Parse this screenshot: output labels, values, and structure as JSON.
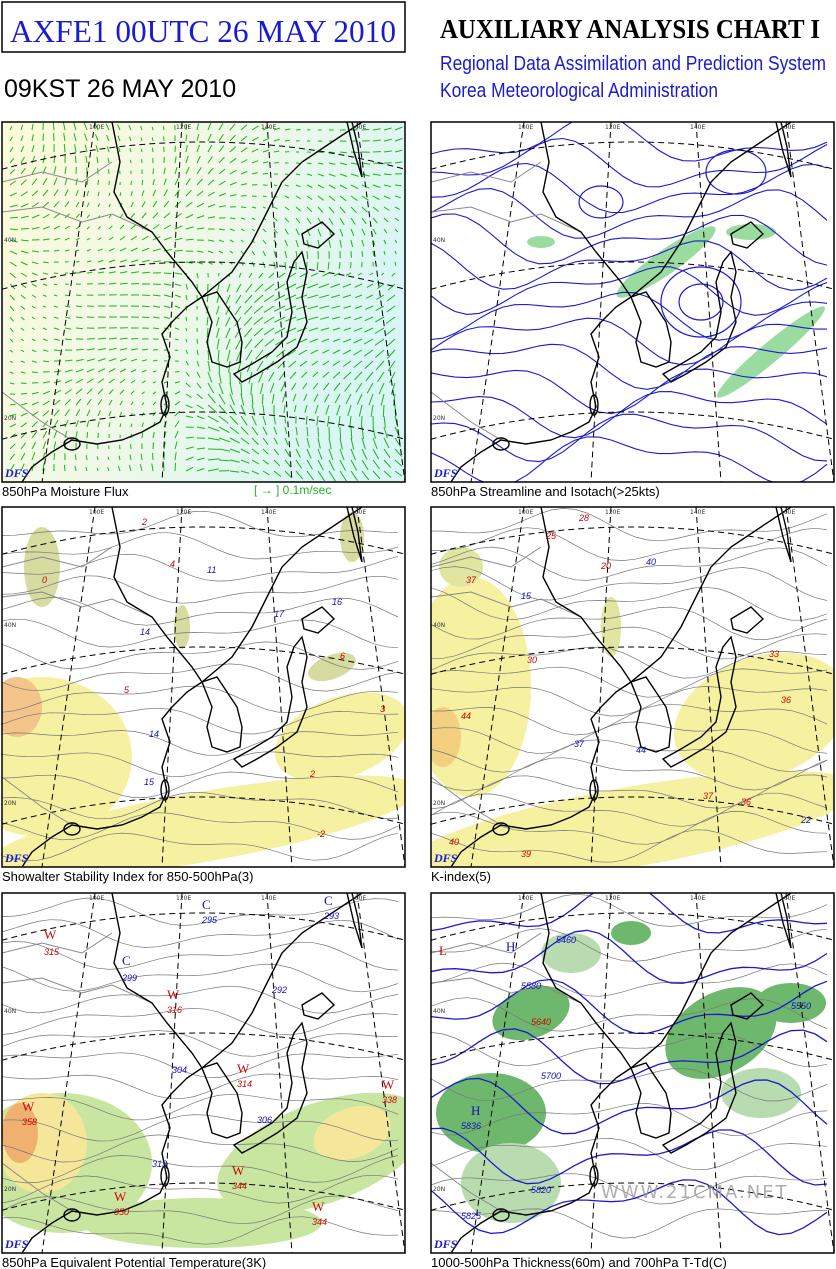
{
  "header": {
    "code_title": "AXFE1  00UTC 26 MAY 2010",
    "local_time": "09KST 26 MAY 2010",
    "chart_title": "AUXILIARY ANALYSIS CHART I",
    "system": "Regional Data Assimilation and Prediction System",
    "agency": "Korea Meteorological Administration"
  },
  "panels": [
    {
      "caption": "850hPa Moisture Flux",
      "legend": "[   →   ] 0.1m/sec",
      "logo": "DFS",
      "lon_labels": [
        "100E",
        "120E",
        "140E",
        "160E"
      ],
      "lat_labels": [
        "40N",
        "20N"
      ],
      "labels": []
    },
    {
      "caption": "850hPa Streamline and Isotach(>25kts)",
      "logo": "DFS",
      "lon_labels": [
        "100E",
        "120E",
        "140E",
        "160E"
      ],
      "lat_labels": [
        "40N",
        "20N"
      ],
      "labels": []
    },
    {
      "caption": "Showalter Stability Index for 850-500hPa(3)",
      "logo": "DFS",
      "lon_labels": [
        "100E",
        "120E",
        "140E",
        "160E"
      ],
      "lat_labels": [
        "40N",
        "20N"
      ],
      "labels": [
        {
          "text": "2",
          "color": "#d00000"
        },
        {
          "text": "4",
          "color": "#d00000"
        },
        {
          "text": "11",
          "color": "#1010c0"
        },
        {
          "text": "14",
          "color": "#1010c0"
        },
        {
          "text": "17",
          "color": "#1010c0"
        },
        {
          "text": "16",
          "color": "#1010c0"
        },
        {
          "text": "6",
          "color": "#d00000"
        },
        {
          "text": "5",
          "color": "#d00000"
        },
        {
          "text": "14",
          "color": "#1010c0"
        },
        {
          "text": "15",
          "color": "#1010c0"
        },
        {
          "text": "2",
          "color": "#d00000"
        },
        {
          "text": "-2",
          "color": "#d00000"
        },
        {
          "text": "0",
          "color": "#d00000"
        },
        {
          "text": "3",
          "color": "#d00000"
        }
      ]
    },
    {
      "caption": "K-index(5)",
      "logo": "DFS",
      "lon_labels": [
        "100E",
        "120E",
        "140E",
        "160E"
      ],
      "lat_labels": [
        "40N",
        "20N"
      ],
      "labels": [
        {
          "text": "28",
          "color": "#d00000"
        },
        {
          "text": "25",
          "color": "#d00000"
        },
        {
          "text": "20",
          "color": "#d00000"
        },
        {
          "text": "40",
          "color": "#1010c0"
        },
        {
          "text": "37",
          "color": "#d00000"
        },
        {
          "text": "15",
          "color": "#1010c0"
        },
        {
          "text": "30",
          "color": "#d00000"
        },
        {
          "text": "33",
          "color": "#d00000"
        },
        {
          "text": "36",
          "color": "#d00000"
        },
        {
          "text": "44",
          "color": "#d00000"
        },
        {
          "text": "44",
          "color": "#1010c0"
        },
        {
          "text": "-37",
          "color": "#1010c0"
        },
        {
          "text": "37",
          "color": "#d00000"
        },
        {
          "text": "36",
          "color": "#d00000"
        },
        {
          "text": "22",
          "color": "#1010c0"
        },
        {
          "text": "40",
          "color": "#d00000"
        },
        {
          "text": "39",
          "color": "#d00000"
        }
      ]
    },
    {
      "caption": "850hPa Equivalent Potential Temperature(3K)",
      "logo": "DFS",
      "lon_labels": [
        "100E",
        "120E",
        "140E",
        "160E"
      ],
      "lat_labels": [
        "40N",
        "20N"
      ],
      "labels": [
        {
          "text": "W",
          "color": "#d00000"
        },
        {
          "text": "315",
          "color": "#d00000"
        },
        {
          "text": "C",
          "color": "#1010c0"
        },
        {
          "text": "299",
          "color": "#1010c0"
        },
        {
          "text": "W",
          "color": "#d00000"
        },
        {
          "text": "316",
          "color": "#d00000"
        },
        {
          "text": "C",
          "color": "#1010c0"
        },
        {
          "text": "295",
          "color": "#1010c0"
        },
        {
          "text": "C",
          "color": "#1010c0"
        },
        {
          "text": "293",
          "color": "#1010c0"
        },
        {
          "text": "292",
          "color": "#1010c0"
        },
        {
          "text": "304",
          "color": "#1010c0"
        },
        {
          "text": "W",
          "color": "#d00000"
        },
        {
          "text": "314",
          "color": "#d00000"
        },
        {
          "text": "306",
          "color": "#1010c0"
        },
        {
          "text": "W",
          "color": "#d00000"
        },
        {
          "text": "338",
          "color": "#d00000"
        },
        {
          "text": "W",
          "color": "#d00000"
        },
        {
          "text": "358",
          "color": "#d00000"
        },
        {
          "text": "313",
          "color": "#1010c0"
        },
        {
          "text": "W",
          "color": "#d00000"
        },
        {
          "text": "344",
          "color": "#d00000"
        },
        {
          "text": "W",
          "color": "#d00000"
        },
        {
          "text": "350",
          "color": "#d00000"
        },
        {
          "text": "W",
          "color": "#d00000"
        },
        {
          "text": "344",
          "color": "#d00000"
        }
      ]
    },
    {
      "caption": "1000-500hPa Thickness(60m) and 700hPa T-Td(C)",
      "logo": "DFS",
      "lon_labels": [
        "100E",
        "120E",
        "140E",
        "160E"
      ],
      "lat_labels": [
        "40N",
        "20N"
      ],
      "watermark": "WWW.21CMA.NET",
      "labels": [
        {
          "text": "5460",
          "color": "#1010c0"
        },
        {
          "text": "H",
          "color": "#1010c0"
        },
        {
          "text": "5580",
          "color": "#1010c0"
        },
        {
          "text": "5640",
          "color": "#d00000"
        },
        {
          "text": "5700",
          "color": "#1010c0"
        },
        {
          "text": "H",
          "color": "#1010c0"
        },
        {
          "text": "5836",
          "color": "#1010c0"
        },
        {
          "text": "5820",
          "color": "#1010c0"
        },
        {
          "text": "5825",
          "color": "#1010c0"
        },
        {
          "text": "L",
          "color": "#d00000"
        },
        {
          "text": "5550",
          "color": "#1010c0"
        }
      ]
    }
  ]
}
